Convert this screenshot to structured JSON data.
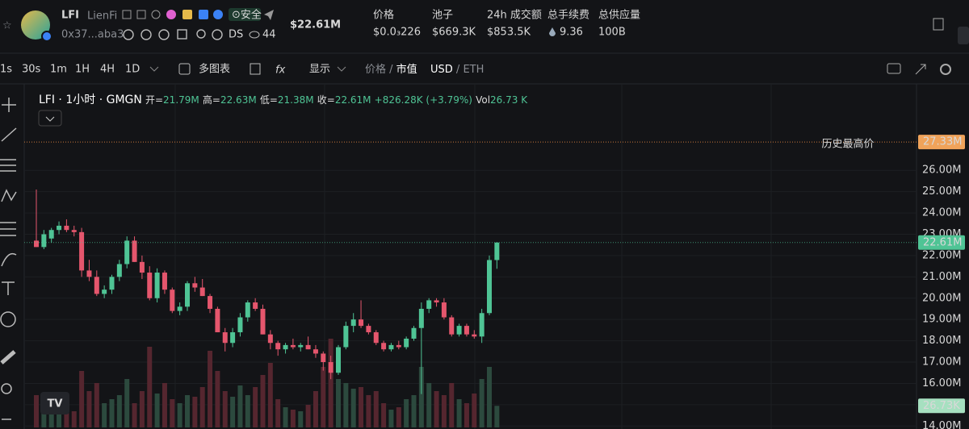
{
  "header": {
    "symbol": "LFI",
    "name": "LienFi",
    "badge": "安全",
    "address": "0x37...aba3",
    "ds": "DS",
    "watchers": "44",
    "market_cap": "$22.61M",
    "stats": [
      {
        "label": "价格",
        "value": "$0.0₃226"
      },
      {
        "label": "池子",
        "value": "$669.3K"
      },
      {
        "label": "24h 成交额",
        "value": "$853.5K"
      },
      {
        "label": "总手续费",
        "value": "9.36"
      },
      {
        "label": "总供应量",
        "value": "100B"
      }
    ]
  },
  "toolbar": {
    "intervals": [
      "1s",
      "30s",
      "1m",
      "1H",
      "4H",
      "1D"
    ],
    "multi_chart": "多图表",
    "display": "显示",
    "price": "价格",
    "mcap": "市值",
    "usd": "USD",
    "eth": "ETH"
  },
  "chart_data": {
    "type": "candlestick",
    "legend": {
      "title": "LFI · 1小时 · GMGN",
      "items": [
        {
          "k": "开=",
          "v": "21.79M"
        },
        {
          "k": "高=",
          "v": "22.63M"
        },
        {
          "k": "低=",
          "v": "21.38M"
        },
        {
          "k": "收=",
          "v": "22.61M"
        }
      ],
      "change": "+826.28K (+3.79%)",
      "vol_k": "Vol",
      "vol_v": "26.73 K"
    },
    "open": [
      22.7,
      22.4,
      22.8,
      23.2,
      23.4,
      23.2,
      23.1,
      21.3,
      21.0,
      20.2,
      20.4,
      21.0,
      21.6,
      22.7,
      21.7,
      21.2,
      20.0,
      21.2,
      20.4,
      19.4,
      19.6,
      20.7,
      20.5,
      20.1,
      19.5,
      18.4,
      17.9,
      18.4,
      19.1,
      19.8,
      19.5,
      18.3,
      17.9,
      17.6,
      17.8,
      17.7,
      17.8,
      17.6,
      17.4,
      17.0,
      16.5,
      17.7,
      18.7,
      19.0,
      18.7,
      18.4,
      17.9,
      17.6,
      17.8,
      17.7,
      18.1,
      18.6,
      19.5,
      19.9,
      19.8,
      19.1,
      18.3,
      18.7,
      18.3,
      18.2,
      19.3,
      21.79
    ],
    "high": [
      25.1,
      23.2,
      23.3,
      23.6,
      23.7,
      23.4,
      23.3,
      21.8,
      21.3,
      20.6,
      21.1,
      21.8,
      22.9,
      22.9,
      22.0,
      21.5,
      21.4,
      21.3,
      20.5,
      19.8,
      20.8,
      21.0,
      20.9,
      20.2,
      19.6,
      18.6,
      18.6,
      19.3,
      19.9,
      20.0,
      19.7,
      18.5,
      18.0,
      17.9,
      18.1,
      17.9,
      18.2,
      17.8,
      17.5,
      17.3,
      17.8,
      18.9,
      19.3,
      19.9,
      18.8,
      18.5,
      18.0,
      17.9,
      18.0,
      18.2,
      18.7,
      19.8,
      20.0,
      20.0,
      20.0,
      19.2,
      18.8,
      18.8,
      18.5,
      19.5,
      22.0,
      22.63
    ],
    "low": [
      22.4,
      22.3,
      22.6,
      23.0,
      23.1,
      22.9,
      21.0,
      20.8,
      20.1,
      20.0,
      20.2,
      20.8,
      21.4,
      21.7,
      20.9,
      19.9,
      19.8,
      20.2,
      19.3,
      19.2,
      19.4,
      20.3,
      20.1,
      19.3,
      18.4,
      17.5,
      17.7,
      18.2,
      18.9,
      19.4,
      18.3,
      17.6,
      17.3,
      17.4,
      17.6,
      17.5,
      17.6,
      17.2,
      16.6,
      16.2,
      16.4,
      17.6,
      18.4,
      18.6,
      18.3,
      17.8,
      17.5,
      17.5,
      17.6,
      17.6,
      18.0,
      15.5,
      19.3,
      19.6,
      19.0,
      18.2,
      18.2,
      18.2,
      18.1,
      17.9,
      19.2,
      21.38
    ],
    "close": [
      22.4,
      23.0,
      23.2,
      23.4,
      23.2,
      23.1,
      21.3,
      21.0,
      20.2,
      20.4,
      21.0,
      21.6,
      22.7,
      21.7,
      21.2,
      20.0,
      21.2,
      20.4,
      19.4,
      19.6,
      20.7,
      20.5,
      20.1,
      19.5,
      18.4,
      17.9,
      18.4,
      19.1,
      19.8,
      19.5,
      18.3,
      17.9,
      17.6,
      17.8,
      17.7,
      17.8,
      17.6,
      17.4,
      17.0,
      16.5,
      17.7,
      18.7,
      19.0,
      18.7,
      18.4,
      17.9,
      17.6,
      17.8,
      17.7,
      18.1,
      18.6,
      19.5,
      19.9,
      19.8,
      19.1,
      18.3,
      18.7,
      18.3,
      18.2,
      19.3,
      21.79,
      22.61
    ],
    "volume": [
      40,
      28,
      25,
      22,
      18,
      20,
      70,
      45,
      55,
      30,
      35,
      40,
      60,
      30,
      45,
      100,
      42,
      55,
      35,
      30,
      40,
      38,
      50,
      95,
      70,
      45,
      38,
      52,
      40,
      50,
      65,
      80,
      35,
      25,
      22,
      20,
      28,
      45,
      75,
      110,
      60,
      55,
      48,
      50,
      40,
      45,
      30,
      22,
      25,
      35,
      40,
      75,
      55,
      45,
      40,
      55,
      35,
      30,
      42,
      60,
      75,
      26.73
    ],
    "volume_lim": [
      0,
      120
    ],
    "volume_label": "26.73K",
    "last_close_label": "22.61M",
    "ath": {
      "value": 27.33,
      "label": "27.33M",
      "text": "历史最高价"
    },
    "ylim": [
      13.86,
      30.02
    ],
    "yticks": [
      {
        "value": 14,
        "label": "14.00M"
      },
      {
        "value": 15,
        "label": "15.00M"
      },
      {
        "value": 16,
        "label": "16.00M"
      },
      {
        "value": 17,
        "label": "17.00M"
      },
      {
        "value": 18,
        "label": "18.00M"
      },
      {
        "value": 19,
        "label": "19.00M"
      },
      {
        "value": 20,
        "label": "20.00M"
      },
      {
        "value": 21,
        "label": "21.00M"
      },
      {
        "value": 22,
        "label": "22.00M"
      },
      {
        "value": 23,
        "label": "23.00M"
      },
      {
        "value": 24,
        "label": "24.00M"
      },
      {
        "value": 25,
        "label": "25.00M"
      },
      {
        "value": 26,
        "label": "26.00M"
      }
    ],
    "up_color": "#4fc495",
    "down_color": "#e5566d",
    "up_volume_color": "#2c4a3e",
    "down_volume_color": "#55262f",
    "grid": true
  }
}
